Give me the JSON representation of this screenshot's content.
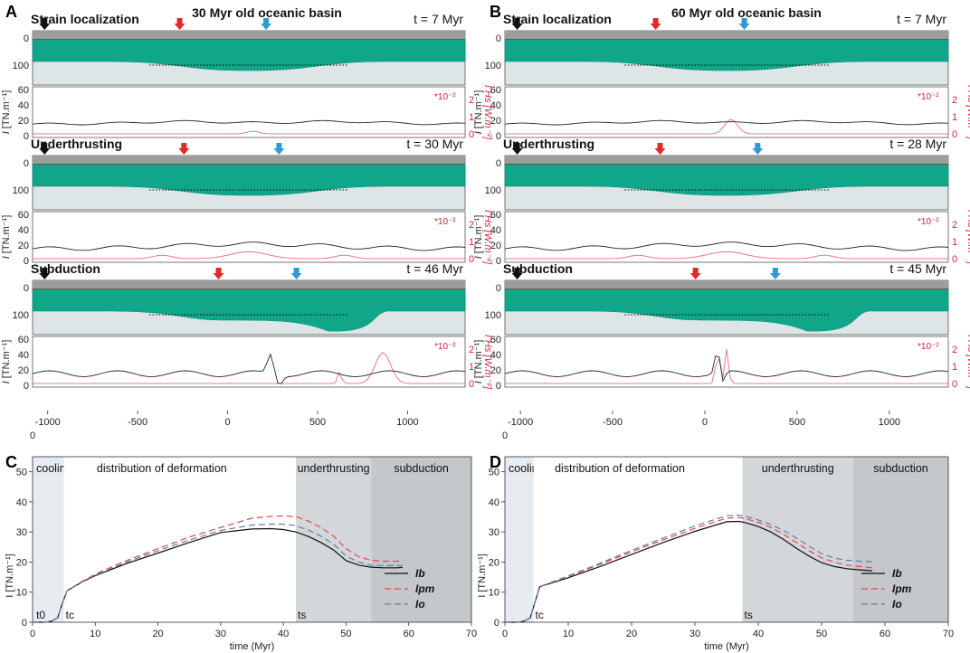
{
  "panels": {
    "A": {
      "letter": "A",
      "title": "30 Myr old oceanic basin"
    },
    "B": {
      "letter": "B",
      "title": "60 Myr old oceanic basin"
    },
    "C": {
      "letter": "C"
    },
    "D": {
      "letter": "D"
    }
  },
  "stages": [
    {
      "panel": "A",
      "name": "Strain localization",
      "time": "t = 7 Myr"
    },
    {
      "panel": "A",
      "name": "Underthrusting",
      "time": "t = 30 Myr"
    },
    {
      "panel": "A",
      "name": "Subduction",
      "time": "t = 46 Myr"
    },
    {
      "panel": "B",
      "name": "Strain localization",
      "time": "t = 7 Myr"
    },
    {
      "panel": "B",
      "name": "Underthrusting",
      "time": "t = 28 Myr"
    },
    {
      "panel": "B",
      "name": "Subduction",
      "time": "t = 45 Myr"
    }
  ],
  "model_axis": {
    "depth_ticks": [
      "0",
      "100"
    ],
    "force_ticks": [
      "0",
      "20",
      "40",
      "60"
    ],
    "force_label_main": "I",
    "force_label_unit": "[TN.m⁻¹]",
    "heat_ticks": [
      "0",
      "1",
      "2"
    ],
    "heat_multiplier": "*10⁻²",
    "heat_label": "I Hs [W.m⁻²]",
    "distance_ticks": [
      "-1000",
      "-500",
      "0",
      "500",
      "1000"
    ]
  },
  "chart_data": [
    {
      "type": "line",
      "panel": "C",
      "xlabel": "time (Myr)",
      "ylabel": "I [TN.m⁻¹]",
      "xlim": [
        0,
        70
      ],
      "ylim": [
        0,
        55
      ],
      "xticks": [
        "0",
        "10",
        "20",
        "30",
        "40",
        "50",
        "60",
        "70"
      ],
      "yticks": [
        "0",
        "10",
        "20",
        "30",
        "40",
        "50"
      ],
      "top_label": "0",
      "phases": [
        {
          "label": "cooling",
          "start": 0,
          "end": 5,
          "color": "#e6ecf0"
        },
        {
          "label": "distribution of deformation",
          "start": 5,
          "end": 42,
          "color": "#ffffff"
        },
        {
          "label": "underthrusting",
          "start": 42,
          "end": 54,
          "color": "#d3d7da"
        },
        {
          "label": "subduction",
          "start": 54,
          "end": 70,
          "color": "#c4c8cb"
        }
      ],
      "markers": [
        {
          "label": "t0",
          "x": 0.3
        },
        {
          "label": "tc",
          "x": 5
        },
        {
          "label": "ts",
          "x": 42
        }
      ],
      "series": [
        {
          "name": "Ib",
          "color": "#111111",
          "dash": "",
          "x": [
            0,
            2,
            3,
            4,
            4.7,
            5.5,
            8,
            10,
            15,
            20,
            25,
            30,
            35,
            38,
            40,
            42,
            44,
            46,
            48,
            50,
            52,
            54,
            56,
            58,
            59
          ],
          "y": [
            0,
            0,
            0.3,
            1.5,
            6,
            10.5,
            13.5,
            15.5,
            19.5,
            23,
            26.5,
            29.8,
            31,
            31.1,
            30.8,
            30,
            28.5,
            26.5,
            24,
            20.5,
            19,
            18.3,
            18.1,
            18.1,
            18.2
          ]
        },
        {
          "name": "Ipm",
          "color": "#e8454f",
          "dash": "7,4",
          "x": [
            0,
            2,
            3,
            4,
            4.7,
            5.5,
            8,
            10,
            15,
            20,
            25,
            30,
            35,
            38,
            40,
            42,
            44,
            46,
            48,
            50,
            52,
            54,
            56,
            58,
            59
          ],
          "y": [
            0,
            0,
            0.3,
            1.5,
            6,
            10.5,
            13.7,
            16,
            20.5,
            24.5,
            28.3,
            31.5,
            34.6,
            35.2,
            35.3,
            35.1,
            33.6,
            31.5,
            28.6,
            24.5,
            21.8,
            20.6,
            20.3,
            20.3,
            20.3
          ]
        },
        {
          "name": "Io",
          "color": "#5f7fa8",
          "dash": "7,4",
          "x": [
            0,
            2,
            3,
            4,
            4.7,
            5.5,
            8,
            10,
            15,
            20,
            25,
            30,
            35,
            38,
            40,
            42,
            44,
            46,
            48,
            50,
            52,
            54,
            56,
            58,
            59
          ],
          "y": [
            0,
            0,
            0.3,
            1.5,
            6,
            10.5,
            13.5,
            15.7,
            20,
            23.8,
            27.3,
            30.5,
            32.3,
            32.6,
            32.6,
            32.1,
            30.6,
            28.6,
            26,
            22,
            20,
            19,
            18.8,
            18.8,
            18.8
          ]
        }
      ]
    },
    {
      "type": "line",
      "panel": "D",
      "xlabel": "time (Myr)",
      "ylabel": "I [TN.m⁻¹]",
      "xlim": [
        0,
        70
      ],
      "ylim": [
        0,
        55
      ],
      "xticks": [
        "0",
        "10",
        "20",
        "30",
        "40",
        "50",
        "60",
        "70"
      ],
      "yticks": [
        "0",
        "10",
        "20",
        "30",
        "40",
        "50"
      ],
      "top_label": "0",
      "phases": [
        {
          "label": "cooling",
          "start": 0,
          "end": 4.5,
          "color": "#e6ecf0"
        },
        {
          "label": "distribution of deformation",
          "start": 4.5,
          "end": 37.5,
          "color": "#ffffff"
        },
        {
          "label": "underthrusting",
          "start": 37.5,
          "end": 55,
          "color": "#d3d7da"
        },
        {
          "label": "subduction",
          "start": 55,
          "end": 70,
          "color": "#c4c8cb"
        }
      ],
      "markers": [
        {
          "label": "tc",
          "x": 4.5
        },
        {
          "label": "ts",
          "x": 37.5
        }
      ],
      "series": [
        {
          "name": "Ib",
          "color": "#111111",
          "dash": "",
          "x": [
            0,
            2,
            3,
            4,
            4.8,
            5.5,
            10,
            15,
            20,
            25,
            30,
            35,
            37,
            38,
            40,
            42,
            44,
            46,
            48,
            50,
            52,
            54,
            56,
            58
          ],
          "y": [
            0,
            0,
            0.3,
            1.5,
            7,
            11.8,
            14.8,
            18.5,
            22.5,
            26.5,
            30.2,
            33.4,
            33.5,
            33.1,
            31.8,
            30,
            27.5,
            24.6,
            22,
            19.8,
            18.5,
            17.8,
            17.4,
            17.1
          ]
        },
        {
          "name": "Ipm",
          "color": "#e8454f",
          "dash": "7,4",
          "x": [
            0,
            2,
            3,
            4,
            4.8,
            5.5,
            10,
            15,
            20,
            25,
            30,
            35,
            37,
            38,
            40,
            42,
            44,
            46,
            48,
            50,
            52,
            54,
            56,
            58
          ],
          "y": [
            0,
            0,
            0.3,
            1.5,
            7,
            11.8,
            15.2,
            19.2,
            23.4,
            27.4,
            31.2,
            34.6,
            34.8,
            34.4,
            33.2,
            31.5,
            29.2,
            26.5,
            23.8,
            21.4,
            20,
            19,
            18.5,
            18.1
          ]
        },
        {
          "name": "Io",
          "color": "#5f7fa8",
          "dash": "7,4",
          "x": [
            0,
            2,
            3,
            4,
            4.8,
            5.5,
            10,
            15,
            20,
            25,
            30,
            35,
            37,
            38,
            40,
            42,
            44,
            46,
            48,
            50,
            52,
            54,
            56,
            58
          ],
          "y": [
            0,
            0,
            0.3,
            1.5,
            7,
            11.8,
            15.4,
            19.6,
            23.9,
            28,
            32,
            35.4,
            35.6,
            35.2,
            34,
            32.5,
            30.5,
            28,
            25.3,
            22.8,
            21.3,
            20.6,
            20.3,
            20.1
          ]
        }
      ]
    }
  ]
}
